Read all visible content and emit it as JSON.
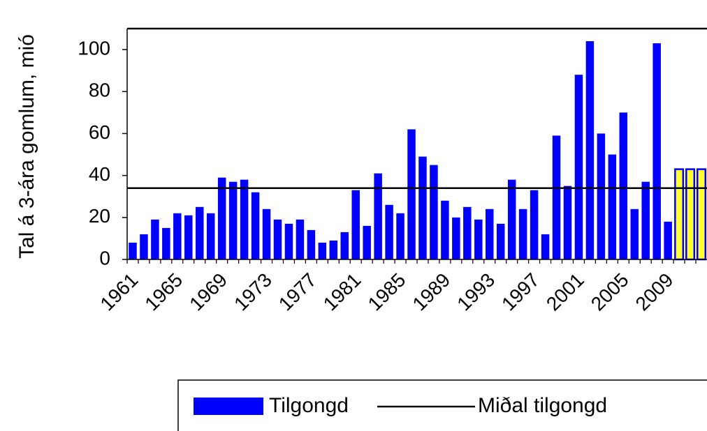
{
  "chart_data": {
    "type": "bar",
    "y_label": "Tal á 3-ára gomlum, mió",
    "categories": [
      "1961",
      null,
      null,
      null,
      "1965",
      null,
      null,
      null,
      "1969",
      null,
      null,
      null,
      "1973",
      null,
      null,
      null,
      "1977",
      null,
      null,
      null,
      "1981",
      null,
      null,
      null,
      "1985",
      null,
      null,
      null,
      "1989",
      null,
      null,
      null,
      "1993",
      null,
      null,
      null,
      "1997",
      null,
      null,
      null,
      "2001",
      null,
      null,
      null,
      "2005",
      null,
      null,
      null,
      "2009",
      null,
      null,
      null
    ],
    "series": [
      {
        "name": "Tilgongd",
        "color": "#0000ff",
        "values": [
          8,
          12,
          19,
          15,
          22,
          21,
          25,
          22,
          39,
          37,
          38,
          32,
          24,
          19,
          17,
          19,
          14,
          8,
          9,
          13,
          33,
          16,
          41,
          26,
          22,
          62,
          49,
          45,
          28,
          20,
          25,
          19,
          24,
          17,
          38,
          24,
          33,
          12,
          59,
          35,
          88,
          104,
          60,
          50,
          70,
          24,
          37,
          103,
          18,
          43,
          43,
          43
        ],
        "bar_colors": [
          "#0000ff",
          "#0000ff",
          "#0000ff",
          "#0000ff",
          "#0000ff",
          "#0000ff",
          "#0000ff",
          "#0000ff",
          "#0000ff",
          "#0000ff",
          "#0000ff",
          "#0000ff",
          "#0000ff",
          "#0000ff",
          "#0000ff",
          "#0000ff",
          "#0000ff",
          "#0000ff",
          "#0000ff",
          "#0000ff",
          "#0000ff",
          "#0000ff",
          "#0000ff",
          "#0000ff",
          "#0000ff",
          "#0000ff",
          "#0000ff",
          "#0000ff",
          "#0000ff",
          "#0000ff",
          "#0000ff",
          "#0000ff",
          "#0000ff",
          "#0000ff",
          "#0000ff",
          "#0000ff",
          "#0000ff",
          "#0000ff",
          "#0000ff",
          "#0000ff",
          "#0000ff",
          "#0000ff",
          "#0000ff",
          "#0000ff",
          "#0000ff",
          "#0000ff",
          "#0000ff",
          "#0000ff",
          "#0000ff",
          "#ffff33",
          "#ffff33",
          "#ffff33"
        ]
      }
    ],
    "mean": {
      "name": "Miðal tilgongd",
      "value": 34,
      "color": "#000000"
    },
    "ylim": [
      0,
      110
    ],
    "yticks": [
      0,
      20,
      40,
      60,
      80,
      100
    ]
  }
}
